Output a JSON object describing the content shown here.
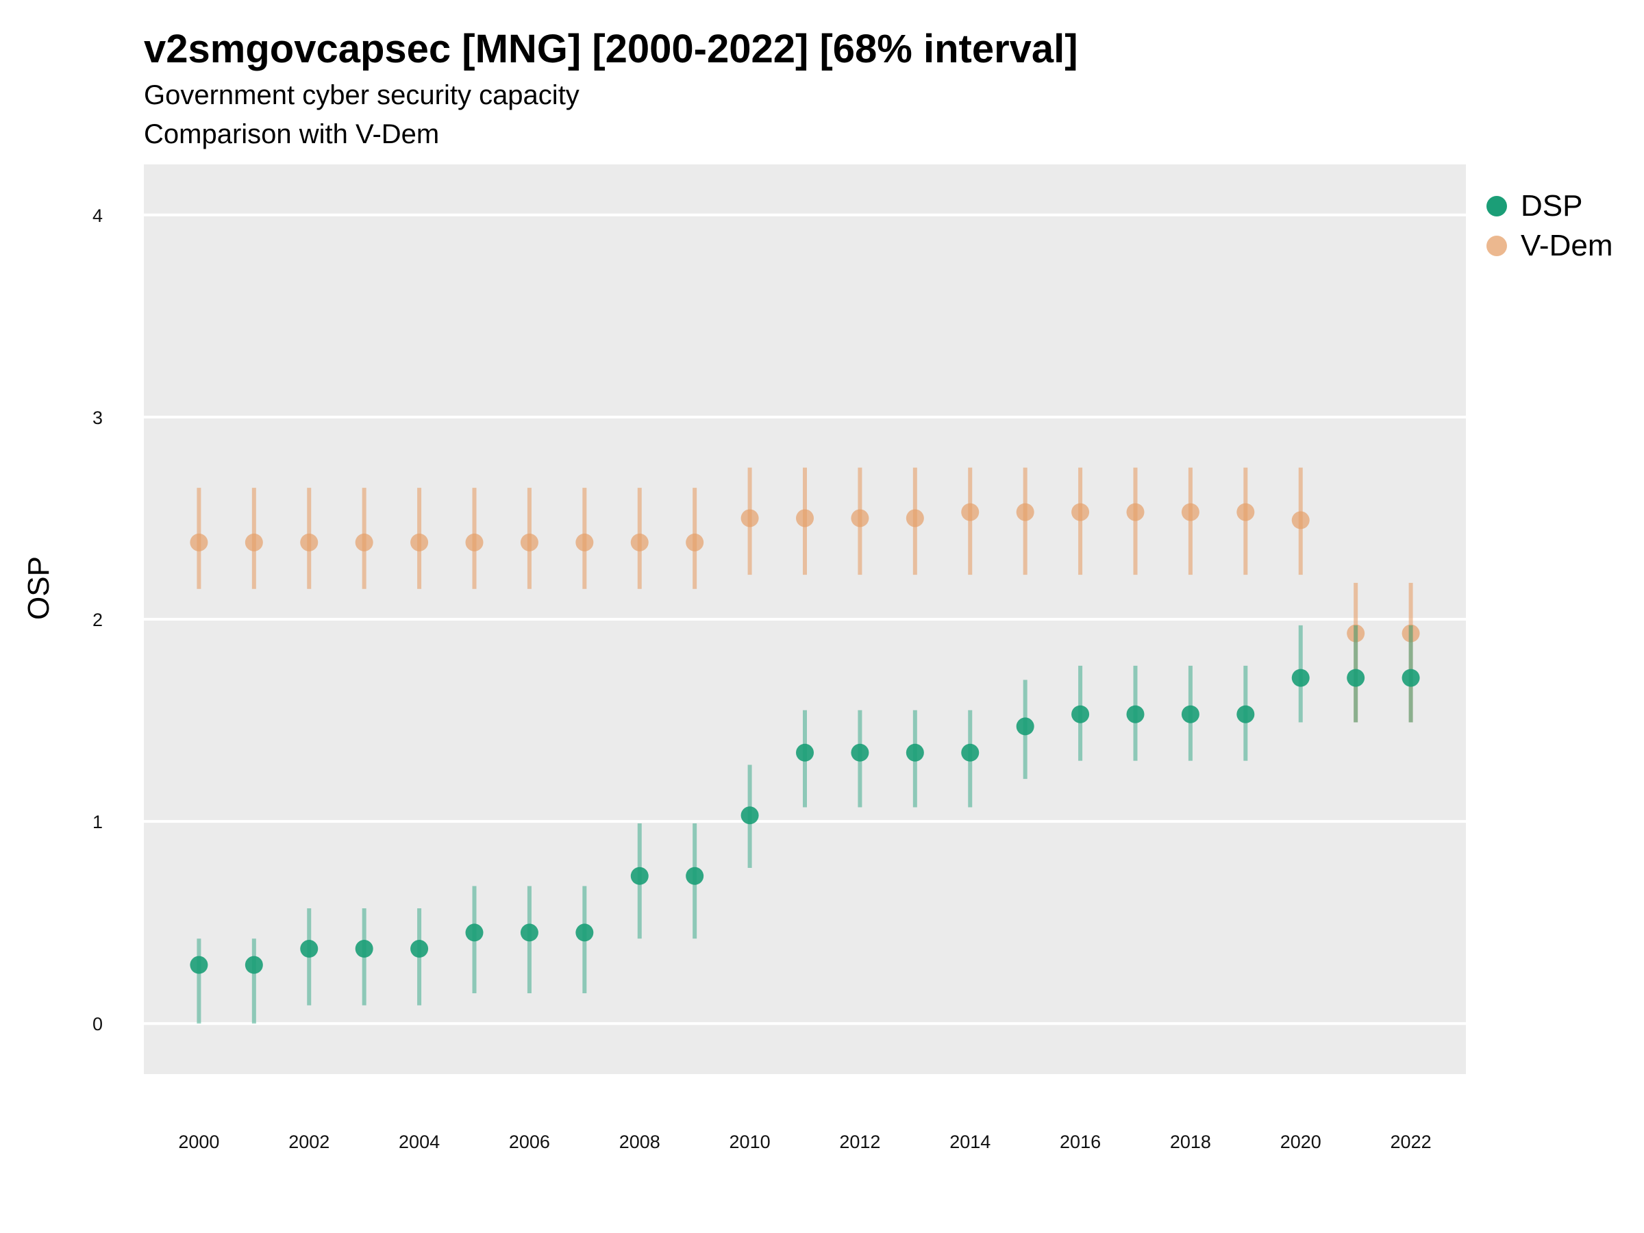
{
  "chart_data": {
    "type": "scatter",
    "title": "v2smgovcapsec [MNG] [2000-2022] [68% interval]",
    "subtitle": "Government cyber security capacity",
    "caption": "Comparison with V-Dem",
    "ylabel": "OSP",
    "xlabel": "",
    "x": [
      2000,
      2001,
      2002,
      2003,
      2004,
      2005,
      2006,
      2007,
      2008,
      2009,
      2010,
      2011,
      2012,
      2013,
      2014,
      2015,
      2016,
      2017,
      2018,
      2019,
      2020,
      2021,
      2022
    ],
    "x_ticks": [
      "2000",
      "2002",
      "2004",
      "2006",
      "2008",
      "2010",
      "2012",
      "2014",
      "2016",
      "2018",
      "2020",
      "2022"
    ],
    "y_ticks": [
      "0",
      "1",
      "2",
      "3",
      "4"
    ],
    "xlim": [
      1999,
      2023
    ],
    "ylim": [
      -0.25,
      4.25
    ],
    "grid": true,
    "legend_position": "right",
    "series": [
      {
        "name": "DSP",
        "color": "#1b9e77",
        "values": [
          0.29,
          0.29,
          0.37,
          0.37,
          0.37,
          0.45,
          0.45,
          0.45,
          0.73,
          0.73,
          1.03,
          1.34,
          1.34,
          1.34,
          1.34,
          1.47,
          1.53,
          1.53,
          1.53,
          1.53,
          1.71,
          1.71,
          1.71
        ],
        "lower": [
          0.0,
          0.0,
          0.09,
          0.09,
          0.09,
          0.15,
          0.15,
          0.15,
          0.42,
          0.42,
          0.77,
          1.07,
          1.07,
          1.07,
          1.07,
          1.21,
          1.3,
          1.3,
          1.3,
          1.3,
          1.49,
          1.49,
          1.49
        ],
        "upper": [
          0.42,
          0.42,
          0.57,
          0.57,
          0.57,
          0.68,
          0.68,
          0.68,
          0.99,
          0.99,
          1.28,
          1.55,
          1.55,
          1.55,
          1.55,
          1.7,
          1.77,
          1.77,
          1.77,
          1.77,
          1.97,
          1.97,
          1.97
        ]
      },
      {
        "name": "V-Dem",
        "color": "#e6a06a",
        "values": [
          2.38,
          2.38,
          2.38,
          2.38,
          2.38,
          2.38,
          2.38,
          2.38,
          2.38,
          2.38,
          2.5,
          2.5,
          2.5,
          2.5,
          2.53,
          2.53,
          2.53,
          2.53,
          2.53,
          2.53,
          2.49,
          1.93,
          1.93
        ],
        "lower": [
          2.15,
          2.15,
          2.15,
          2.15,
          2.15,
          2.15,
          2.15,
          2.15,
          2.15,
          2.15,
          2.22,
          2.22,
          2.22,
          2.22,
          2.22,
          2.22,
          2.22,
          2.22,
          2.22,
          2.22,
          2.22,
          1.49,
          1.49
        ],
        "upper": [
          2.65,
          2.65,
          2.65,
          2.65,
          2.65,
          2.65,
          2.65,
          2.65,
          2.65,
          2.65,
          2.75,
          2.75,
          2.75,
          2.75,
          2.75,
          2.75,
          2.75,
          2.75,
          2.75,
          2.75,
          2.75,
          2.18,
          2.18
        ]
      }
    ]
  }
}
